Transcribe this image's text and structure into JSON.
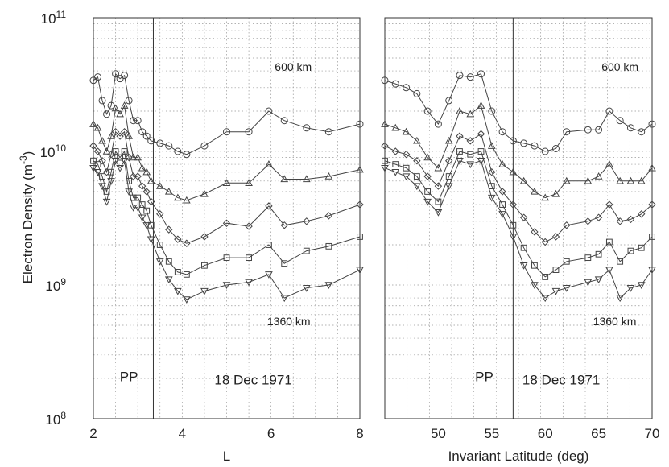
{
  "chart_data": [
    {
      "type": "line",
      "xlabel": "L",
      "ylabel": "Electron Density (m",
      "ylabel_sup": "-3",
      "ylabel_close": ")",
      "yscale": "log",
      "ylim": [
        100000000,
        100000000000
      ],
      "xlim": [
        2,
        8
      ],
      "xticks": [
        "2",
        "4",
        "6",
        "8"
      ],
      "yticks": [
        {
          "value": 100000000,
          "base": "10",
          "exp": "8"
        },
        {
          "value": 1000000000,
          "base": "10",
          "exp": "9"
        },
        {
          "value": 10000000000,
          "base": "10",
          "exp": "10"
        },
        {
          "value": 100000000000,
          "base": "10",
          "exp": "11"
        }
      ],
      "grid": true,
      "plasmapause_x": 3.35,
      "annotations": [
        {
          "text": "600 km",
          "x": 6.5,
          "y": 40000000000
        },
        {
          "text": "1360 km",
          "x": 6.4,
          "y": 500000000
        },
        {
          "text": "PP",
          "x": 2.8,
          "y": 190000000
        },
        {
          "text": "18 Dec 1971",
          "x": 5.6,
          "y": 180000000
        }
      ],
      "series": [
        {
          "marker": "circle",
          "x": [
            2.0,
            2.1,
            2.2,
            2.3,
            2.4,
            2.5,
            2.6,
            2.7,
            2.8,
            2.9,
            3.0,
            3.1,
            3.2,
            3.3,
            3.5,
            3.7,
            3.9,
            4.1,
            4.5,
            5.0,
            5.5,
            5.95,
            6.3,
            6.8,
            7.3,
            8.0
          ],
          "y": [
            34000000000,
            36000000000,
            24000000000,
            19000000000,
            22000000000,
            38000000000,
            35000000000,
            37000000000,
            24000000000,
            17000000000,
            17000000000,
            14000000000,
            13000000000,
            12000000000,
            11500000000,
            11000000000,
            10000000000,
            9500000000,
            11000000000,
            14000000000,
            14000000000,
            20000000000,
            17000000000,
            15000000000,
            14000000000,
            16000000000
          ]
        },
        {
          "marker": "triangle",
          "x": [
            2.0,
            2.1,
            2.2,
            2.3,
            2.4,
            2.5,
            2.6,
            2.7,
            2.8,
            2.9,
            3.0,
            3.1,
            3.2,
            3.3,
            3.5,
            3.7,
            3.9,
            4.1,
            4.5,
            5.0,
            5.5,
            5.95,
            6.3,
            6.8,
            7.3,
            8.0
          ],
          "y": [
            16000000000,
            15000000000,
            12000000000,
            10000000000,
            13000000000,
            21000000000,
            19000000000,
            22000000000,
            13000000000,
            9000000000,
            9000000000,
            7500000000,
            7000000000,
            6000000000,
            5500000000,
            5000000000,
            4500000000,
            4300000000,
            4800000000,
            5800000000,
            5800000000,
            8000000000,
            6200000000,
            6200000000,
            6500000000,
            7300000000
          ]
        },
        {
          "marker": "diamond",
          "x": [
            2.0,
            2.1,
            2.2,
            2.3,
            2.4,
            2.5,
            2.6,
            2.7,
            2.8,
            2.9,
            3.0,
            3.1,
            3.2,
            3.3,
            3.5,
            3.7,
            3.9,
            4.1,
            4.5,
            5.0,
            5.5,
            5.95,
            6.3,
            6.8,
            7.3,
            8.0
          ],
          "y": [
            11000000000,
            10000000000,
            8500000000,
            7000000000,
            9500000000,
            14000000000,
            13000000000,
            14000000000,
            9000000000,
            6500000000,
            6500000000,
            5500000000,
            5000000000,
            4200000000,
            3400000000,
            2600000000,
            2200000000,
            2050000000,
            2300000000,
            2900000000,
            2750000000,
            3900000000,
            2800000000,
            3000000000,
            3300000000,
            4000000000
          ]
        },
        {
          "marker": "square",
          "x": [
            2.0,
            2.1,
            2.2,
            2.3,
            2.4,
            2.5,
            2.6,
            2.7,
            2.8,
            2.9,
            3.0,
            3.1,
            3.2,
            3.3,
            3.5,
            3.7,
            3.9,
            4.1,
            4.5,
            5.0,
            5.5,
            5.95,
            6.3,
            6.8,
            7.3,
            8.0
          ],
          "y": [
            8500000000,
            8000000000,
            6500000000,
            5000000000,
            7000000000,
            10000000000,
            9000000000,
            10000000000,
            6000000000,
            4500000000,
            4500000000,
            4000000000,
            3600000000,
            2800000000,
            2000000000,
            1500000000,
            1250000000,
            1200000000,
            1400000000,
            1600000000,
            1600000000,
            2000000000,
            1450000000,
            1800000000,
            1950000000,
            2300000000
          ]
        },
        {
          "marker": "triangle-down",
          "x": [
            2.0,
            2.1,
            2.2,
            2.3,
            2.4,
            2.5,
            2.6,
            2.7,
            2.8,
            2.9,
            3.0,
            3.1,
            3.2,
            3.3,
            3.5,
            3.7,
            3.9,
            4.1,
            4.5,
            5.0,
            5.5,
            5.95,
            6.3,
            6.8,
            7.3,
            8.0
          ],
          "y": [
            7500000000,
            7000000000,
            5500000000,
            4200000000,
            6000000000,
            8500000000,
            7500000000,
            8500000000,
            5000000000,
            3800000000,
            3800000000,
            3200000000,
            2800000000,
            2200000000,
            1500000000,
            1100000000,
            900000000,
            780000000,
            900000000,
            1000000000,
            1050000000,
            1200000000,
            800000000,
            950000000,
            1000000000,
            1300000000
          ]
        }
      ]
    },
    {
      "type": "line",
      "xlabel": "Invariant Latitude (deg)",
      "yscale": "log",
      "ylim": [
        100000000,
        100000000000
      ],
      "xlim": [
        45,
        70
      ],
      "xticks": [
        "50",
        "55",
        "60",
        "65",
        "70"
      ],
      "grid": true,
      "plasmapause_x": 57,
      "annotations": [
        {
          "text": "600 km",
          "x": 67,
          "y": 40000000000
        },
        {
          "text": "1360 km",
          "x": 66.5,
          "y": 500000000
        },
        {
          "text": "PP",
          "x": 54.3,
          "y": 190000000
        },
        {
          "text": "18 Dec 1971",
          "x": 61.5,
          "y": 180000000
        }
      ],
      "series": [
        {
          "marker": "circle",
          "x": [
            45.0,
            46.0,
            47.0,
            48.0,
            49.0,
            50.0,
            51.0,
            52.0,
            53.0,
            54.0,
            55.0,
            56.0,
            57.0,
            58.0,
            59.0,
            60.0,
            61.0,
            62.0,
            64.0,
            65.0,
            66.0,
            67.0,
            68.0,
            69.0,
            70.0
          ],
          "y": [
            34000000000,
            32000000000,
            30000000000,
            27000000000,
            20000000000,
            16000000000,
            24000000000,
            37000000000,
            36000000000,
            38000000000,
            20000000000,
            14000000000,
            12000000000,
            11500000000,
            11000000000,
            10000000000,
            10500000000,
            14000000000,
            14500000000,
            14500000000,
            20000000000,
            17000000000,
            15000000000,
            14000000000,
            16000000000
          ]
        },
        {
          "marker": "triangle",
          "x": [
            45.0,
            46.0,
            47.0,
            48.0,
            49.0,
            50.0,
            51.0,
            52.0,
            53.0,
            54.0,
            55.0,
            56.0,
            57.0,
            58.0,
            59.0,
            60.0,
            61.0,
            62.0,
            64.0,
            65.0,
            66.0,
            67.0,
            68.0,
            69.0,
            70.0
          ],
          "y": [
            16000000000,
            15000000000,
            14000000000,
            12000000000,
            9000000000,
            7500000000,
            12000000000,
            20000000000,
            19000000000,
            22000000000,
            11000000000,
            8000000000,
            7000000000,
            6000000000,
            5000000000,
            4500000000,
            4800000000,
            6000000000,
            6000000000,
            6500000000,
            8000000000,
            6000000000,
            6000000000,
            6000000000,
            7500000000
          ]
        },
        {
          "marker": "diamond",
          "x": [
            45.0,
            46.0,
            47.0,
            48.0,
            49.0,
            50.0,
            51.0,
            52.0,
            53.0,
            54.0,
            55.0,
            56.0,
            57.0,
            58.0,
            59.0,
            60.0,
            61.0,
            62.0,
            64.0,
            65.0,
            66.0,
            67.0,
            68.0,
            69.0,
            70.0
          ],
          "y": [
            11000000000,
            10000000000,
            9500000000,
            8500000000,
            6500000000,
            5500000000,
            8500000000,
            13000000000,
            12000000000,
            13500000000,
            7000000000,
            5000000000,
            4000000000,
            3200000000,
            2500000000,
            2100000000,
            2300000000,
            2800000000,
            3000000000,
            3200000000,
            4000000000,
            3000000000,
            3100000000,
            3400000000,
            4000000000
          ]
        },
        {
          "marker": "square",
          "x": [
            45.0,
            46.0,
            47.0,
            48.0,
            49.0,
            50.0,
            51.0,
            52.0,
            53.0,
            54.0,
            55.0,
            56.0,
            57.0,
            58.0,
            59.0,
            60.0,
            61.0,
            62.0,
            64.0,
            65.0,
            66.0,
            67.0,
            68.0,
            69.0,
            70.0
          ],
          "y": [
            8500000000,
            8000000000,
            7500000000,
            6500000000,
            5000000000,
            4200000000,
            6500000000,
            10000000000,
            9500000000,
            10000000000,
            5500000000,
            4000000000,
            2800000000,
            1900000000,
            1400000000,
            1150000000,
            1300000000,
            1500000000,
            1600000000,
            1700000000,
            2100000000,
            1500000000,
            1800000000,
            1900000000,
            2300000000
          ]
        },
        {
          "marker": "triangle-down",
          "x": [
            45.0,
            46.0,
            47.0,
            48.0,
            49.0,
            50.0,
            51.0,
            52.0,
            53.0,
            54.0,
            55.0,
            56.0,
            57.0,
            58.0,
            59.0,
            60.0,
            61.0,
            62.0,
            64.0,
            65.0,
            66.0,
            67.0,
            68.0,
            69.0,
            70.0
          ],
          "y": [
            7500000000,
            7000000000,
            6500000000,
            5500000000,
            4200000000,
            3500000000,
            5500000000,
            8500000000,
            8000000000,
            8500000000,
            4500000000,
            3400000000,
            2300000000,
            1400000000,
            1000000000,
            800000000,
            900000000,
            950000000,
            1050000000,
            1100000000,
            1300000000,
            800000000,
            950000000,
            1000000000,
            1300000000
          ]
        }
      ]
    }
  ]
}
